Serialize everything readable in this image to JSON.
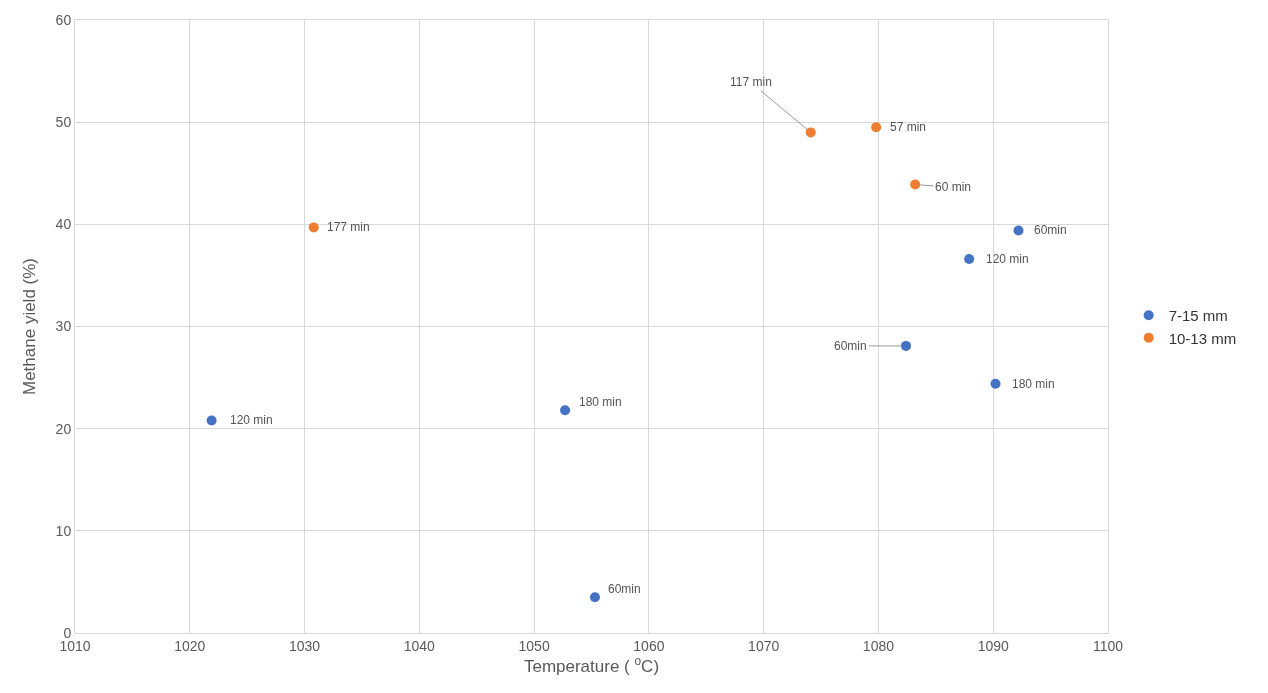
{
  "chart_data": {
    "type": "scatter",
    "xlabel": "Temperature ( $^{o}$C)",
    "ylabel": "Methane yield (%)",
    "xlim": [
      1010,
      1100
    ],
    "xticks": [
      1010,
      1020,
      1030,
      1040,
      1050,
      1060,
      1070,
      1080,
      1090,
      1100
    ],
    "ylim": [
      0,
      60
    ],
    "yticks": [
      0,
      10,
      20,
      30,
      40,
      50,
      60
    ],
    "grid": true,
    "legend": "right",
    "marker": "circle",
    "series": [
      {
        "name": "7-15 mm",
        "color": "#4472c4",
        "x": [
          1021.9,
          1052.7,
          1055.3,
          1082.4,
          1087.9,
          1090.2,
          1092.2
        ],
        "values": [
          20.8,
          21.8,
          3.5,
          28.1,
          36.6,
          24.4,
          39.4
        ]
      },
      {
        "name": "10-13 mm",
        "color": "#ed7d31",
        "x": [
          1030.8,
          1074.1,
          1079.8,
          1083.2
        ],
        "values": [
          39.7,
          49.0,
          49.5,
          43.9
        ]
      }
    ],
    "annotations": [
      {
        "text": "120 min",
        "x": 1021.9,
        "y": 20.8
      },
      {
        "text": "180 min",
        "x": 1052.7,
        "y": 21.8
      },
      {
        "text": "60min",
        "x": 1055.3,
        "y": 3.5
      },
      {
        "text": "60min",
        "x": 1082.4,
        "y": 28.1
      },
      {
        "text": "120 min",
        "x": 1087.9,
        "y": 36.6
      },
      {
        "text": "180 min",
        "x": 1090.2,
        "y": 24.4
      },
      {
        "text": "60min",
        "x": 1092.2,
        "y": 39.4
      },
      {
        "text": "177 min",
        "x": 1030.8,
        "y": 39.7
      },
      {
        "text": "117 min",
        "x": 1074.1,
        "y": 49.0
      },
      {
        "text": "57 min",
        "x": 1079.8,
        "y": 49.5
      },
      {
        "text": "60 min",
        "x": 1083.2,
        "y": 43.9
      }
    ]
  }
}
